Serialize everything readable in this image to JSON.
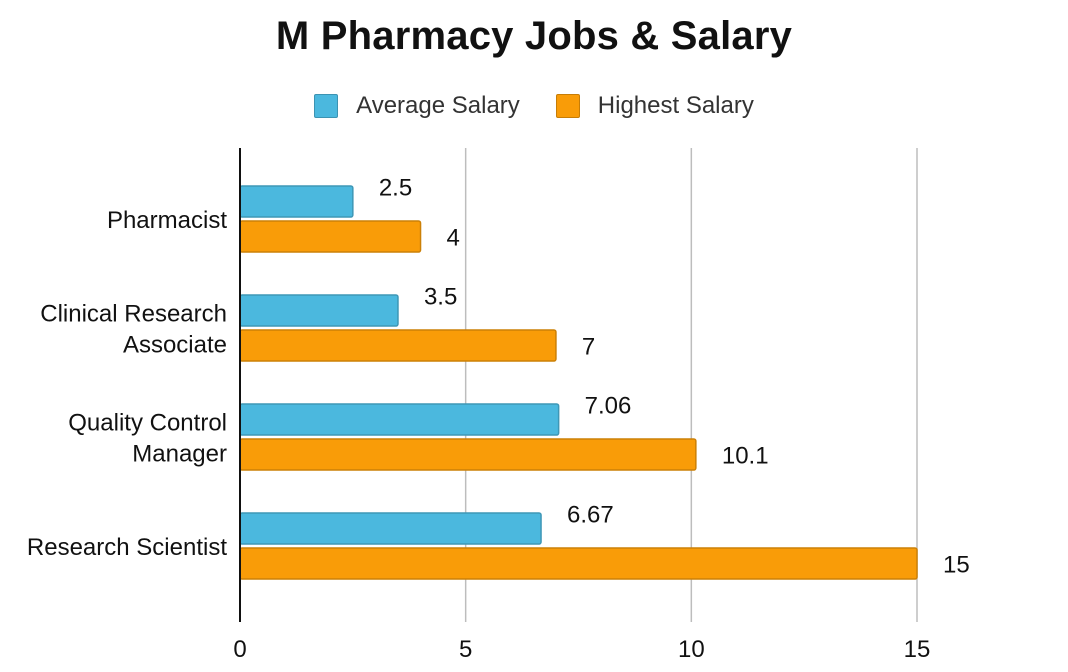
{
  "chart_data": {
    "type": "bar",
    "orientation": "horizontal",
    "title": "M Pharmacy Jobs & Salary",
    "categories": [
      [
        "Pharmacist"
      ],
      [
        "Clinical Research",
        "Associate"
      ],
      [
        "Quality Control",
        "Manager"
      ],
      [
        "Research Scientist"
      ]
    ],
    "series": [
      {
        "name": "Average Salary",
        "color": "#4bb8de",
        "values": [
          2.5,
          3.5,
          7.06,
          6.67
        ],
        "labels": [
          "2.5",
          "3.5",
          "7.06",
          "6.67"
        ]
      },
      {
        "name": "Highest Salary",
        "color": "#f99c08",
        "values": [
          4,
          7,
          10.1,
          15
        ],
        "labels": [
          "4",
          "7",
          "10.1",
          "15"
        ]
      }
    ],
    "xlim": [
      0,
      15
    ],
    "xticks": [
      "0",
      "5",
      "10",
      "15"
    ],
    "xlabel": "",
    "ylabel": "",
    "grid": true,
    "legend_position": "top-center"
  }
}
